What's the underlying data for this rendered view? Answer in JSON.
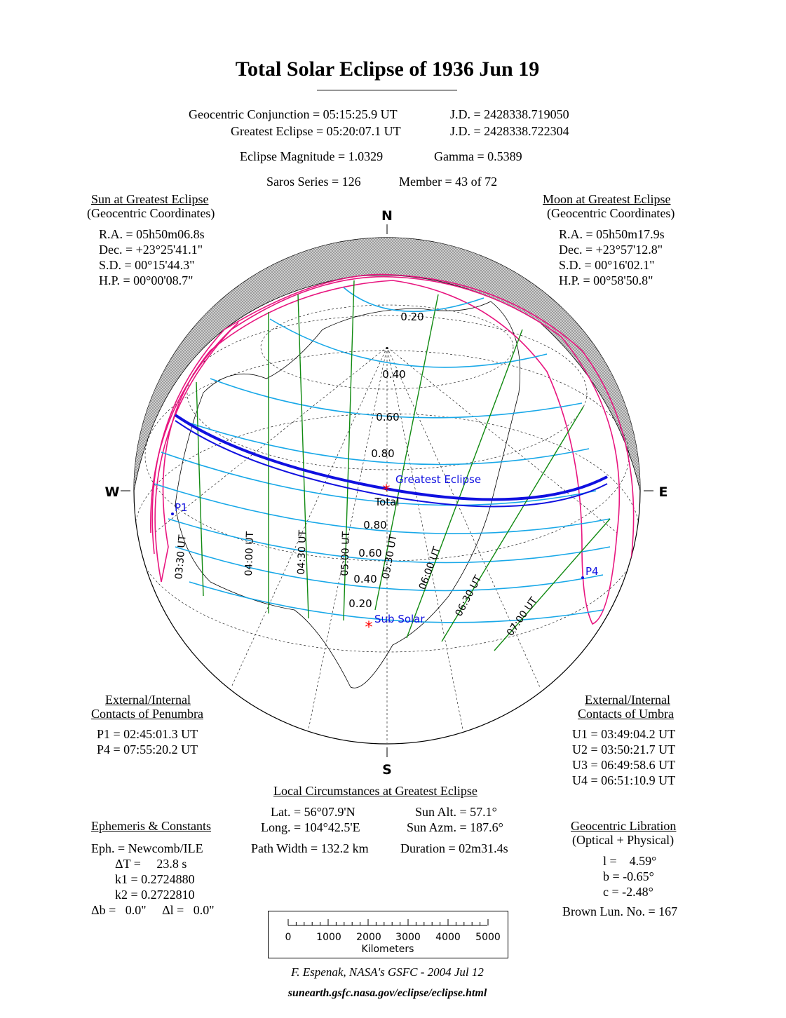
{
  "title": "Total Solar Eclipse of  1936 Jun 19",
  "header": {
    "conjunction": "Geocentric Conjunction =  05:15:25.9 UT",
    "conjunction_jd": "J.D. =  2428338.719050",
    "greatest": "Greatest Eclipse =  05:20:07.1 UT",
    "greatest_jd": "J.D. =  2428338.722304",
    "magnitude": "Eclipse Magnitude =  1.0329",
    "gamma": "Gamma =  0.5389",
    "saros": "Saros Series = 126",
    "member": "Member = 43 of 72"
  },
  "sun": {
    "heading": "Sun at Greatest Eclipse",
    "sub": "(Geocentric Coordinates)",
    "lines": [
      "R.A. = 05h50m06.8s",
      "Dec. = +23°25'41.1\"",
      "S.D. =  00°15'44.3\"",
      "H.P. =  00°00'08.7\""
    ]
  },
  "moon": {
    "heading": "Moon at Greatest Eclipse",
    "sub": "(Geocentric Coordinates)",
    "lines": [
      "R.A. = 05h50m17.9s",
      "Dec. = +23°57'12.8\"",
      "S.D. =  00°16'02.1\"",
      "H.P. =  00°58'50.8\""
    ]
  },
  "penumbra": {
    "heading1": "External/Internal",
    "heading2": "Contacts of Penumbra",
    "lines": [
      "P1 = 02:45:01.3 UT",
      "P4 = 07:55:20.2 UT"
    ]
  },
  "umbra": {
    "heading1": "External/Internal",
    "heading2": "Contacts of Umbra",
    "lines": [
      "U1 = 03:49:04.2 UT",
      "U2 = 03:50:21.7 UT",
      "U3 = 06:49:58.6 UT",
      "U4 = 06:51:10.9 UT"
    ]
  },
  "local": {
    "heading": "Local Circumstances at Greatest Eclipse",
    "lat": "Lat. =  56°07.9'N",
    "long": "Long. = 104°42.5'E",
    "sun_alt": "Sun Alt. =   57.1°",
    "sun_azm": "Sun Azm. = 187.6°",
    "path_width": "Path Width = 132.2 km",
    "duration": "Duration =  02m31.4s"
  },
  "ephemeris": {
    "heading": "Ephemeris & Constants",
    "lines": [
      "Eph. = Newcomb/ILE",
      "ΔT =     23.8 s",
      "k1 = 0.2724880",
      "k2 = 0.2722810",
      "Δb =   0.0\"     Δl =   0.0\""
    ]
  },
  "libration": {
    "heading": "Geocentric Libration",
    "sub": "(Optical + Physical)",
    "lines": [
      "l =    4.59°",
      "b =  -0.65°",
      "c =  -2.48°"
    ],
    "brown": "Brown Lun. No. =  167"
  },
  "map": {
    "north": "N",
    "south": "S",
    "west": "W",
    "east": "E",
    "mag_north": [
      "0.20",
      "0.40",
      "0.60",
      "0.80"
    ],
    "mag_south": [
      "0.80",
      "0.60",
      "0.40",
      "0.20"
    ],
    "times": [
      "03:30 UT",
      "04:00 UT",
      "04:30 UT",
      "05:00 UT",
      "05:30 UT",
      "06:00 UT",
      "06:30 UT",
      "07:00 UT"
    ],
    "greatest_label": "Greatest Eclipse",
    "total_label": "Total",
    "subsolar_label": "Sub Solar",
    "p1": "P1",
    "p4": "P4",
    "colors": {
      "penumbra": "#e8157f",
      "magnitude": "#18a8e8",
      "time": "#118a11",
      "path": "#1010e0",
      "marker": "#ff0000"
    }
  },
  "scale": {
    "ticks": [
      "0",
      "1000",
      "2000",
      "3000",
      "4000",
      "5000"
    ],
    "unit": "Kilometers"
  },
  "credit": "F. Espenak, NASA's GSFC -  2004 Jul 12",
  "url": "sunearth.gsfc.nasa.gov/eclipse/eclipse.html"
}
